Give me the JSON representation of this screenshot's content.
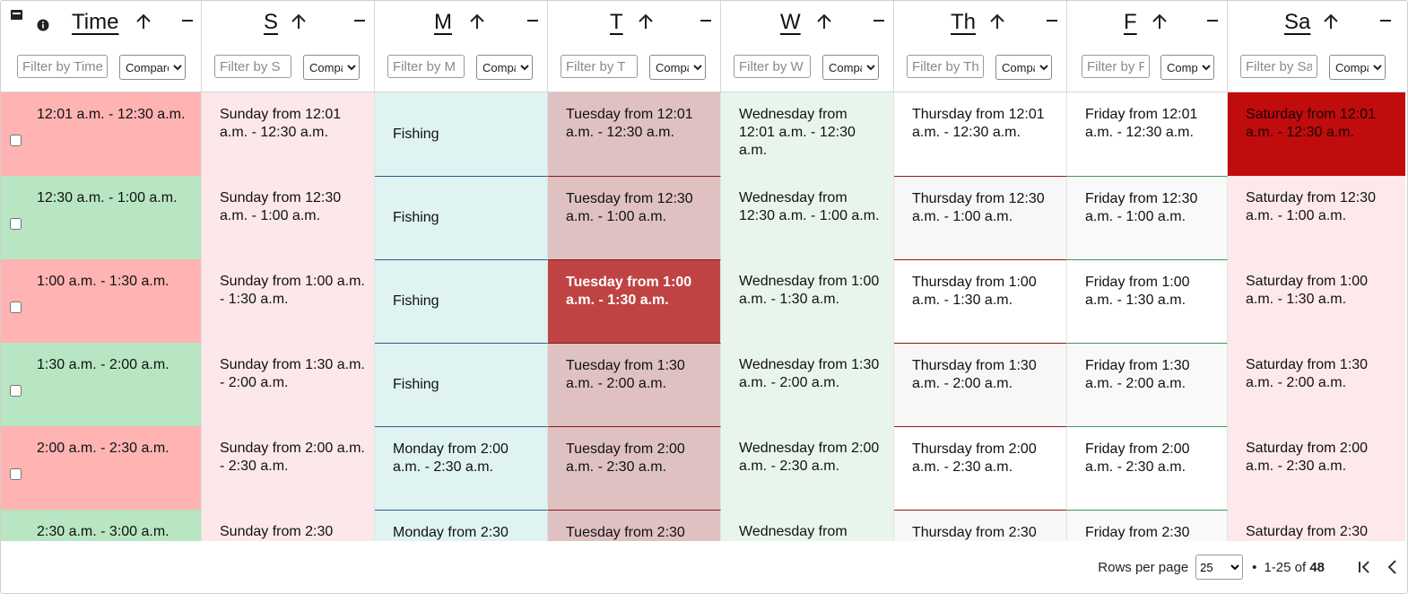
{
  "columns": [
    {
      "title": "Time",
      "filter_placeholder": "Filter by Time",
      "compare_label": "Compare"
    },
    {
      "title": "S",
      "filter_placeholder": "Filter by S",
      "compare_label": "Compare"
    },
    {
      "title": "M",
      "filter_placeholder": "Filter by M",
      "compare_label": "Compare"
    },
    {
      "title": "T",
      "filter_placeholder": "Filter by T",
      "compare_label": "Compare"
    },
    {
      "title": "W",
      "filter_placeholder": "Filter by W",
      "compare_label": "Compare"
    },
    {
      "title": "Th",
      "filter_placeholder": "Filter by Th",
      "compare_label": "Compare"
    },
    {
      "title": "F",
      "filter_placeholder": "Filter by F",
      "compare_label": "Compare"
    },
    {
      "title": "Sa",
      "filter_placeholder": "Filter by Sa",
      "compare_label": "Compare"
    }
  ],
  "rows": [
    {
      "cells": [
        "12:01 a.m. - 12:30 a.m.",
        "Sunday from 12:01 a.m. - 12:30 a.m.",
        "Fishing",
        "Tuesday from 12:01 a.m. - 12:30 a.m.",
        "Wednesday from 12:01 a.m. - 12:30 a.m.",
        "Thursday from 12:01 a.m. - 12:30 a.m.",
        "Friday from 12:01 a.m. - 12:30 a.m.",
        "Saturday from 12:01 a.m. - 12:30 a.m."
      ]
    },
    {
      "cells": [
        "12:30 a.m. - 1:00 a.m.",
        "Sunday from 12:30 a.m. - 1:00 a.m.",
        "Fishing",
        "Tuesday from 12:30 a.m. - 1:00 a.m.",
        "Wednesday from 12:30 a.m. - 1:00 a.m.",
        "Thursday from 12:30 a.m. - 1:00 a.m.",
        "Friday from 12:30 a.m. - 1:00 a.m.",
        "Saturday from 12:30 a.m. - 1:00 a.m."
      ]
    },
    {
      "cells": [
        "1:00 a.m. - 1:30 a.m.",
        "Sunday from 1:00 a.m. - 1:30 a.m.",
        "Fishing",
        "Tuesday from 1:00 a.m. - 1:30 a.m.",
        "Wednesday from 1:00 a.m. - 1:30 a.m.",
        "Thursday from 1:00 a.m. - 1:30 a.m.",
        "Friday from 1:00 a.m. - 1:30 a.m.",
        "Saturday from 1:00 a.m. - 1:30 a.m."
      ]
    },
    {
      "cells": [
        "1:30 a.m. - 2:00 a.m.",
        "Sunday from 1:30 a.m. - 2:00 a.m.",
        "Fishing",
        "Tuesday from 1:30 a.m. - 2:00 a.m.",
        "Wednesday from 1:30 a.m. - 2:00 a.m.",
        "Thursday from 1:30 a.m. - 2:00 a.m.",
        "Friday from 1:30 a.m. - 2:00 a.m.",
        "Saturday from 1:30 a.m. - 2:00 a.m."
      ]
    },
    {
      "cells": [
        "2:00 a.m. - 2:30 a.m.",
        "Sunday from 2:00 a.m. - 2:30 a.m.",
        "Monday from 2:00 a.m. - 2:30 a.m.",
        "Tuesday from 2:00 a.m. - 2:30 a.m.",
        "Wednesday from 2:00 a.m. - 2:30 a.m.",
        "Thursday from 2:00 a.m. - 2:30 a.m.",
        "Friday from 2:00 a.m. - 2:30 a.m.",
        "Saturday from 2:00 a.m. - 2:30 a.m."
      ]
    },
    {
      "cells": [
        "2:30 a.m. - 3:00 a.m.",
        "Sunday from 2:30",
        "Monday from 2:30",
        "Tuesday from 2:30",
        "Wednesday from",
        "Thursday from 2:30",
        "Friday from 2:30",
        "Saturday from 2:30"
      ]
    }
  ],
  "pagination": {
    "rows_per_page_label": "Rows per page",
    "rows_per_page_value": "25",
    "range_prefix": "1-25 of ",
    "total": "48"
  },
  "colors": {
    "time_red": "#ffb3b3",
    "time_green": "#b8e6c2",
    "sunday_bg": "#fce8e8",
    "monday_bg": "#dff3f3",
    "tuesday_bg": "#dfc1c1",
    "tuesday_highlight": "#c04343",
    "wednesday_bg": "#e8f5ec",
    "thursday_bg": "#ffffff",
    "thursday_alt_bg": "#f7f7f7",
    "friday_bg": "#ffffff",
    "friday_alt_bg": "#f9f9f9",
    "saturday_bg": "#fde9e9",
    "saturday_highlight": "#c00c0c"
  }
}
